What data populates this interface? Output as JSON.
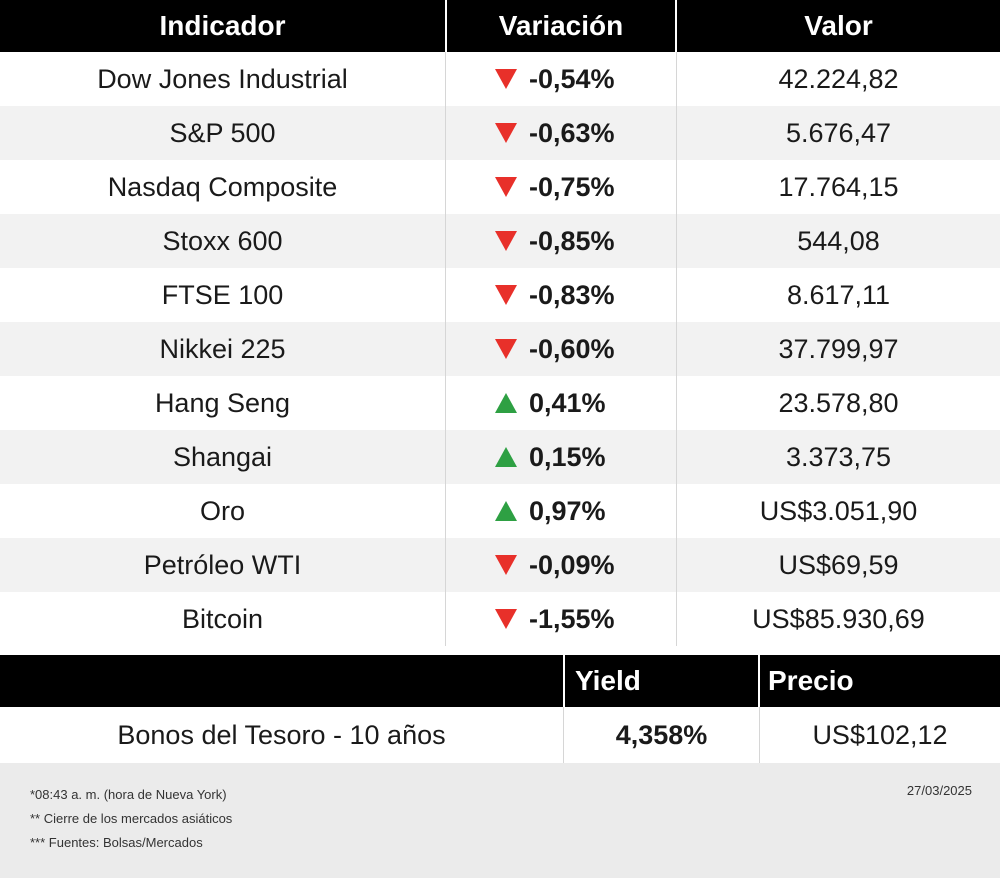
{
  "headers": {
    "indicator": "Indicador",
    "variation": "Variación",
    "value": "Valor"
  },
  "rows": [
    {
      "name": "Dow Jones Industrial",
      "variation": "-0,54%",
      "direction": "down",
      "value": "42.224,82"
    },
    {
      "name": "S&P 500",
      "variation": "-0,63%",
      "direction": "down",
      "value": "5.676,47"
    },
    {
      "name": "Nasdaq Composite",
      "variation": "-0,75%",
      "direction": "down",
      "value": "17.764,15"
    },
    {
      "name": "Stoxx 600",
      "variation": "-0,85%",
      "direction": "down",
      "value": "544,08"
    },
    {
      "name": "FTSE 100",
      "variation": "-0,83%",
      "direction": "down",
      "value": "8.617,11"
    },
    {
      "name": "Nikkei 225",
      "variation": "-0,60%",
      "direction": "down",
      "value": "37.799,97"
    },
    {
      "name": "Hang Seng",
      "variation": "0,41%",
      "direction": "up",
      "value": "23.578,80"
    },
    {
      "name": "Shangai",
      "variation": "0,15%",
      "direction": "up",
      "value": "3.373,75"
    },
    {
      "name": "Oro",
      "variation": "0,97%",
      "direction": "up",
      "value": "US$3.051,90"
    },
    {
      "name": "Petróleo WTI",
      "variation": "-0,09%",
      "direction": "down",
      "value": "US$69,59"
    },
    {
      "name": "Bitcoin",
      "variation": "-1,55%",
      "direction": "down",
      "value": "US$85.930,69"
    }
  ],
  "bond": {
    "yield_header": "Yield",
    "price_header": "Precio",
    "name": "Bonos del Tesoro - 10 años",
    "yield": "4,358%",
    "price": "US$102,12"
  },
  "footer": {
    "note1": "*08:43 a. m. (hora de Nueva York)",
    "note2": "** Cierre de los mercados asiáticos",
    "note3": "*** Fuentes:  Bolsas/Mercados",
    "date": "27/03/2025"
  },
  "colors": {
    "down": "#e8302a",
    "up": "#2ea043",
    "header_bg": "#000000",
    "alt_row": "#f2f2f2",
    "footer_bg": "#ebebeb"
  },
  "icons": {
    "down": "triangle-down-icon",
    "up": "triangle-up-icon"
  }
}
